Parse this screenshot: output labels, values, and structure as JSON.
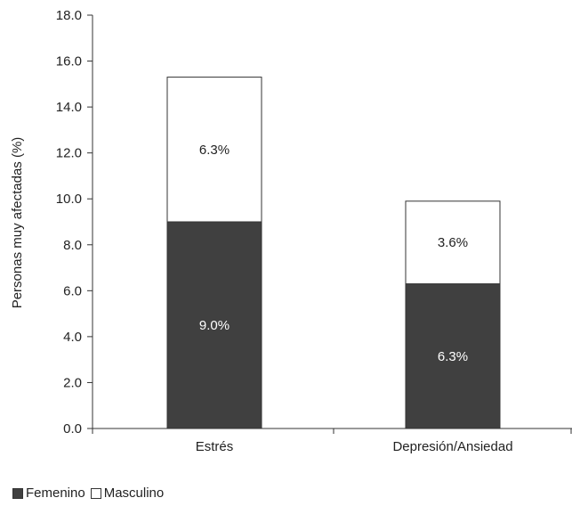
{
  "chart_data": {
    "type": "bar",
    "stacked": true,
    "categories": [
      "Estrés",
      "Depresión/Ansiedad"
    ],
    "series": [
      {
        "name": "Femenino",
        "values": [
          9.0,
          6.3
        ],
        "labels": [
          "9.0%",
          "6.3%"
        ],
        "color": "#404040",
        "label_color": "#ffffff"
      },
      {
        "name": "Masculino",
        "values": [
          6.3,
          3.6
        ],
        "labels": [
          "6.3%",
          "3.6%"
        ],
        "color": "#ffffff",
        "label_color": "#222222"
      }
    ],
    "ylabel": "Personas muy afectadas (%)",
    "xlabel": "",
    "ylim": [
      0,
      18
    ],
    "yticks": [
      "0.0",
      "2.0",
      "4.0",
      "6.0",
      "8.0",
      "10.0",
      "12.0",
      "14.0",
      "16.0",
      "18.0"
    ],
    "grid": false,
    "legend_position": "bottom-left"
  }
}
